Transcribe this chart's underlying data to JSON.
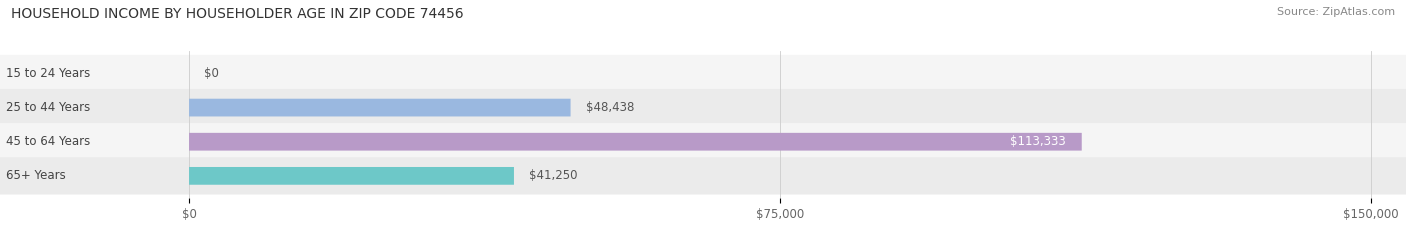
{
  "title": "HOUSEHOLD INCOME BY HOUSEHOLDER AGE IN ZIP CODE 74456",
  "source": "Source: ZipAtlas.com",
  "categories": [
    "15 to 24 Years",
    "25 to 44 Years",
    "45 to 64 Years",
    "65+ Years"
  ],
  "values": [
    0,
    48438,
    113333,
    41250
  ],
  "value_labels": [
    "$0",
    "$48,438",
    "$113,333",
    "$41,250"
  ],
  "bar_colors": [
    "#f4a0a0",
    "#9ab8e0",
    "#b89ac8",
    "#6dc8c8"
  ],
  "xlim_max": 150000,
  "xticks": [
    0,
    75000,
    150000
  ],
  "xtick_labels": [
    "$0",
    "$75,000",
    "$150,000"
  ],
  "title_fontsize": 10,
  "source_fontsize": 8,
  "label_fontsize": 8.5,
  "tick_fontsize": 8.5,
  "background_color": "#ffffff",
  "bar_height": 0.52,
  "row_colors": [
    "#f5f5f5",
    "#ebebeb"
  ]
}
